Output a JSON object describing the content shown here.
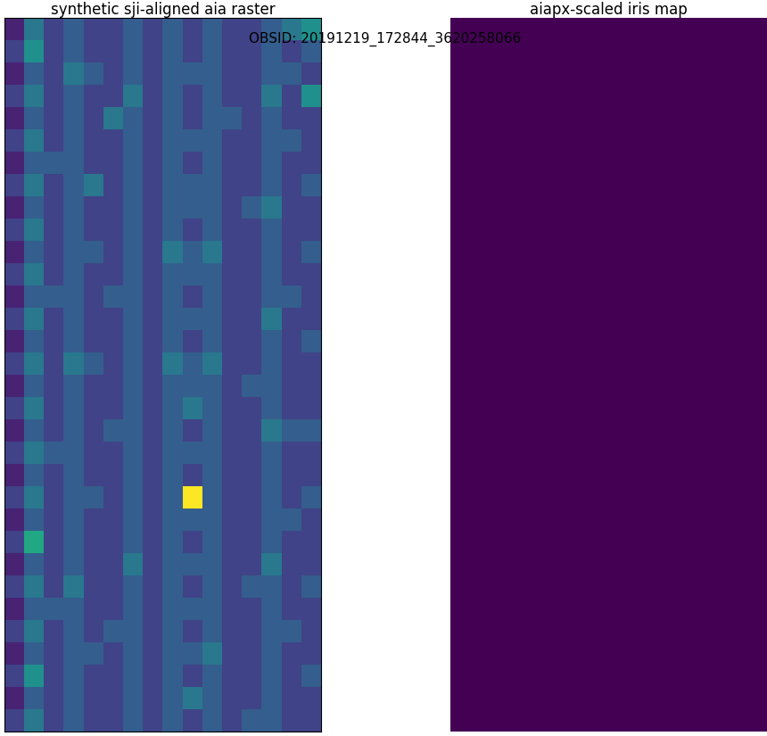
{
  "chart_data": [
    {
      "type": "heatmap",
      "title": "synthetic sji-aligned aia raster",
      "tick_labels": false,
      "clim": [
        0,
        10
      ],
      "cells": [
        [
          1,
          4,
          2,
          3,
          2,
          2,
          3,
          2,
          3,
          2,
          3,
          2,
          2,
          3,
          4,
          5
        ],
        [
          2,
          5,
          2,
          3,
          2,
          2,
          3,
          2,
          3,
          2,
          3,
          2,
          2,
          3,
          2,
          3
        ],
        [
          1,
          3,
          2,
          4,
          3,
          2,
          3,
          2,
          3,
          3,
          3,
          2,
          2,
          3,
          3,
          2
        ],
        [
          2,
          4,
          2,
          3,
          2,
          2,
          4,
          2,
          3,
          2,
          3,
          2,
          2,
          4,
          2,
          5
        ],
        [
          1,
          3,
          2,
          3,
          2,
          4,
          3,
          2,
          3,
          2,
          3,
          3,
          2,
          3,
          2,
          2
        ],
        [
          2,
          4,
          2,
          3,
          2,
          2,
          3,
          2,
          3,
          3,
          3,
          2,
          2,
          3,
          3,
          2
        ],
        [
          1,
          3,
          3,
          3,
          2,
          2,
          3,
          2,
          3,
          2,
          3,
          2,
          2,
          3,
          2,
          2
        ],
        [
          2,
          4,
          2,
          3,
          4,
          2,
          3,
          2,
          3,
          3,
          3,
          2,
          2,
          3,
          2,
          3
        ],
        [
          1,
          3,
          2,
          3,
          2,
          2,
          3,
          2,
          3,
          3,
          3,
          2,
          3,
          4,
          2,
          2
        ],
        [
          2,
          4,
          2,
          3,
          2,
          2,
          3,
          2,
          3,
          2,
          3,
          2,
          2,
          3,
          2,
          2
        ],
        [
          1,
          3,
          2,
          3,
          3,
          2,
          3,
          2,
          4,
          3,
          4,
          2,
          2,
          3,
          2,
          3
        ],
        [
          2,
          4,
          2,
          3,
          2,
          2,
          3,
          2,
          3,
          3,
          3,
          2,
          2,
          3,
          2,
          2
        ],
        [
          1,
          3,
          3,
          3,
          2,
          3,
          3,
          2,
          3,
          2,
          3,
          2,
          2,
          3,
          3,
          2
        ],
        [
          2,
          4,
          2,
          3,
          2,
          2,
          3,
          2,
          3,
          3,
          3,
          2,
          2,
          4,
          2,
          2
        ],
        [
          1,
          3,
          2,
          3,
          2,
          2,
          3,
          2,
          3,
          2,
          3,
          2,
          2,
          3,
          2,
          3
        ],
        [
          2,
          4,
          2,
          4,
          3,
          2,
          3,
          2,
          4,
          3,
          4,
          2,
          2,
          3,
          2,
          2
        ],
        [
          1,
          3,
          2,
          3,
          2,
          2,
          3,
          2,
          3,
          3,
          3,
          2,
          3,
          3,
          2,
          2
        ],
        [
          2,
          4,
          2,
          3,
          2,
          2,
          3,
          2,
          3,
          4,
          3,
          2,
          2,
          3,
          2,
          2
        ],
        [
          1,
          3,
          2,
          3,
          2,
          3,
          3,
          2,
          3,
          2,
          3,
          2,
          2,
          4,
          3,
          3
        ],
        [
          2,
          4,
          3,
          3,
          2,
          2,
          3,
          2,
          3,
          3,
          3,
          2,
          2,
          3,
          2,
          2
        ],
        [
          1,
          3,
          2,
          3,
          2,
          2,
          3,
          2,
          3,
          2,
          3,
          2,
          2,
          3,
          2,
          2
        ],
        [
          2,
          4,
          2,
          3,
          3,
          2,
          3,
          2,
          3,
          10,
          3,
          2,
          2,
          3,
          2,
          3
        ],
        [
          1,
          3,
          2,
          3,
          2,
          2,
          3,
          2,
          3,
          3,
          3,
          2,
          2,
          3,
          3,
          2
        ],
        [
          2,
          6,
          2,
          3,
          2,
          2,
          3,
          2,
          3,
          2,
          3,
          2,
          2,
          3,
          2,
          2
        ],
        [
          1,
          3,
          2,
          3,
          2,
          2,
          4,
          2,
          3,
          3,
          3,
          2,
          2,
          4,
          2,
          2
        ],
        [
          2,
          4,
          2,
          4,
          2,
          2,
          3,
          2,
          3,
          2,
          3,
          2,
          3,
          3,
          2,
          3
        ],
        [
          1,
          3,
          3,
          3,
          2,
          2,
          3,
          2,
          3,
          3,
          3,
          2,
          2,
          3,
          2,
          2
        ],
        [
          2,
          4,
          2,
          3,
          2,
          3,
          3,
          2,
          3,
          2,
          3,
          2,
          2,
          3,
          3,
          2
        ],
        [
          1,
          3,
          2,
          3,
          3,
          2,
          3,
          2,
          3,
          3,
          4,
          2,
          2,
          3,
          2,
          2
        ],
        [
          2,
          5,
          2,
          3,
          2,
          2,
          3,
          2,
          3,
          2,
          3,
          2,
          2,
          3,
          2,
          3
        ],
        [
          1,
          3,
          2,
          3,
          2,
          2,
          3,
          2,
          3,
          4,
          3,
          2,
          2,
          3,
          2,
          2
        ],
        [
          2,
          4,
          2,
          3,
          2,
          2,
          3,
          2,
          3,
          2,
          3,
          2,
          3,
          3,
          2,
          2
        ]
      ]
    },
    {
      "type": "heatmap",
      "title": "aiapx-scaled iris map",
      "tick_labels": false,
      "clim": [
        0,
        10
      ],
      "cells": [
        [
          0,
          0,
          0,
          0
        ],
        [
          0,
          0,
          0,
          0
        ],
        [
          0,
          0,
          0,
          0
        ],
        [
          0,
          0,
          0,
          0
        ],
        [
          0,
          0,
          0,
          0
        ],
        [
          0,
          0,
          0,
          0
        ],
        [
          0,
          0,
          0,
          0
        ],
        [
          0,
          0,
          0,
          0
        ]
      ]
    }
  ],
  "figure_text": "OBSID: 20191219_172844_3620258066"
}
